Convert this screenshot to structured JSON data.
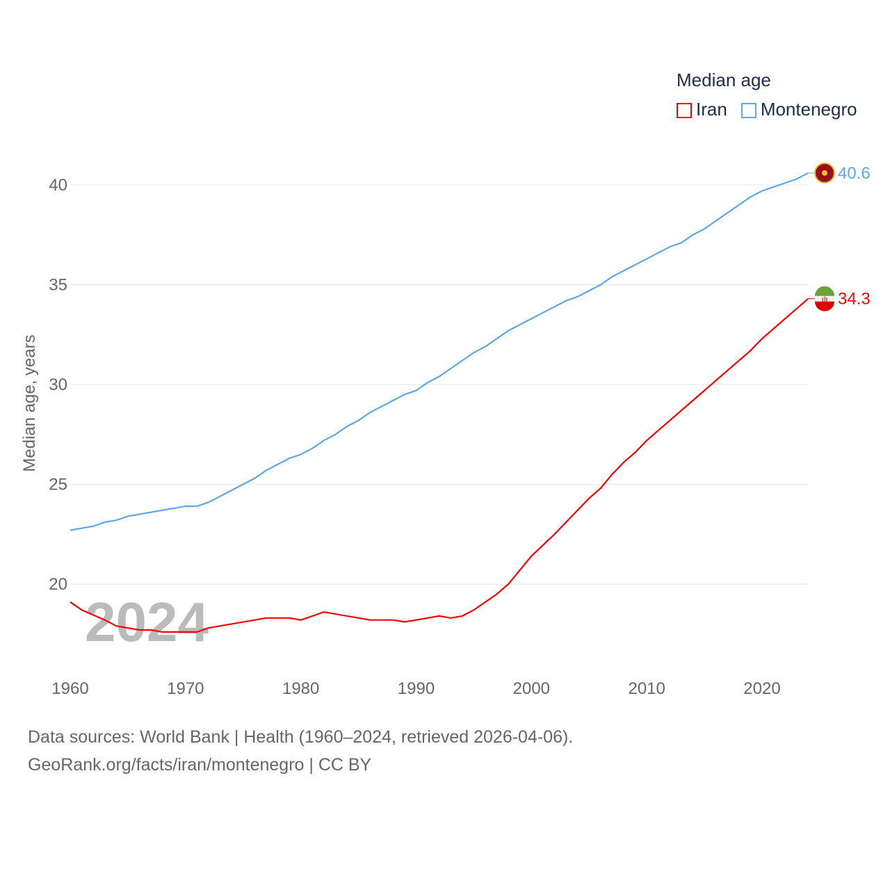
{
  "chart_data": {
    "type": "line",
    "title": "Median age",
    "ylabel": "Median age, years",
    "xlabel": "",
    "xlim": [
      1960,
      2024
    ],
    "ylim": [
      16.8,
      40.6
    ],
    "yticks": [
      20,
      25,
      30,
      35,
      40
    ],
    "xticks": [
      1960,
      1970,
      1980,
      1990,
      2000,
      2010,
      2020
    ],
    "year_label": "2024",
    "legend_placement": "top-right",
    "series": [
      {
        "name": "Iran",
        "color": "#ff0000",
        "end_label": "34.3",
        "points": [
          [
            1960,
            19.1
          ],
          [
            1961,
            18.7
          ],
          [
            1963,
            18.2
          ],
          [
            1964,
            17.9
          ],
          [
            1966,
            17.7
          ],
          [
            1967,
            17.7
          ],
          [
            1968,
            17.6
          ],
          [
            1971,
            17.6
          ],
          [
            1972,
            17.8
          ],
          [
            1976,
            18.2
          ],
          [
            1977,
            18.3
          ],
          [
            1979,
            18.3
          ],
          [
            1980,
            18.2
          ],
          [
            1982,
            18.6
          ],
          [
            1986,
            18.2
          ],
          [
            1988,
            18.2
          ],
          [
            1989,
            18.1
          ],
          [
            1992,
            18.4
          ],
          [
            1993,
            18.3
          ],
          [
            1994,
            18.4
          ],
          [
            1995,
            18.7
          ],
          [
            1997,
            19.5
          ],
          [
            1998,
            20.0
          ],
          [
            2000,
            21.4
          ],
          [
            2002,
            22.5
          ],
          [
            2003,
            23.1
          ],
          [
            2005,
            24.3
          ],
          [
            2006,
            24.8
          ],
          [
            2007,
            25.5
          ],
          [
            2008,
            26.1
          ],
          [
            2009,
            26.6
          ],
          [
            2010,
            27.2
          ],
          [
            2019,
            31.7
          ],
          [
            2020,
            32.3
          ],
          [
            2024,
            34.3
          ]
        ]
      },
      {
        "name": "Montenegro",
        "color": "#5ea7ea",
        "end_label": "40.6",
        "points": [
          [
            1960,
            22.7
          ],
          [
            1962,
            22.9
          ],
          [
            1963,
            23.1
          ],
          [
            1964,
            23.2
          ],
          [
            1965,
            23.4
          ],
          [
            1970,
            23.9
          ],
          [
            1971,
            23.9
          ],
          [
            1972,
            24.1
          ],
          [
            1976,
            25.3
          ],
          [
            1977,
            25.7
          ],
          [
            1979,
            26.3
          ],
          [
            1980,
            26.5
          ],
          [
            1981,
            26.8
          ],
          [
            1982,
            27.2
          ],
          [
            1983,
            27.5
          ],
          [
            1984,
            27.9
          ],
          [
            1985,
            28.2
          ],
          [
            1986,
            28.6
          ],
          [
            1988,
            29.2
          ],
          [
            1989,
            29.5
          ],
          [
            1990,
            29.7
          ],
          [
            1991,
            30.1
          ],
          [
            1992,
            30.4
          ],
          [
            1995,
            31.6
          ],
          [
            1996,
            31.9
          ],
          [
            1998,
            32.7
          ],
          [
            2000,
            33.3
          ],
          [
            2003,
            34.2
          ],
          [
            2004,
            34.4
          ],
          [
            2006,
            35.0
          ],
          [
            2007,
            35.4
          ],
          [
            2010,
            36.3
          ],
          [
            2012,
            36.9
          ],
          [
            2013,
            37.1
          ],
          [
            2014,
            37.5
          ],
          [
            2015,
            37.8
          ],
          [
            2019,
            39.4
          ],
          [
            2020,
            39.7
          ],
          [
            2023,
            40.3
          ],
          [
            2024,
            40.6
          ]
        ]
      }
    ]
  },
  "footer": {
    "line1": "Data sources: World Bank | Health (1960–2024, retrieved 2026-04-06).",
    "line2": "GeoRank.org/facts/iran/montenegro | CC BY"
  }
}
